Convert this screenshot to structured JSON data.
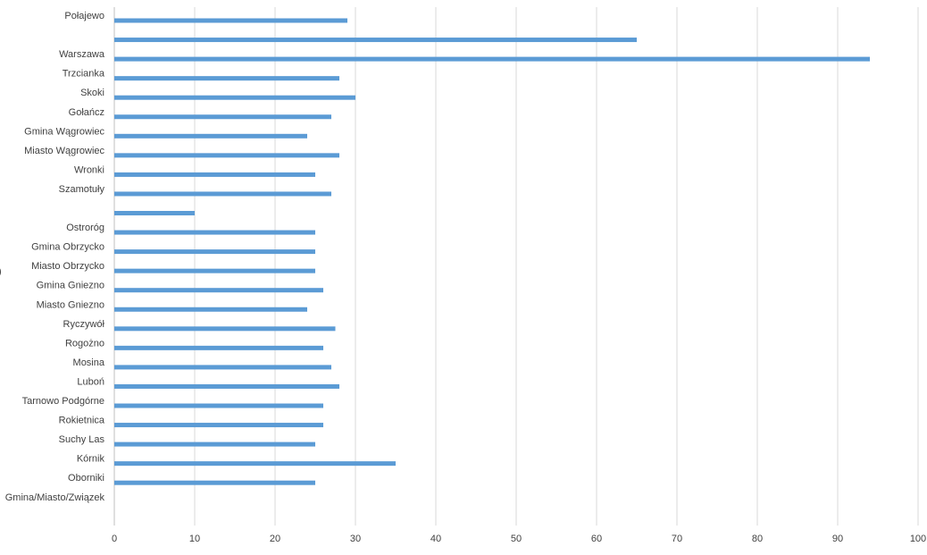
{
  "chart_data": {
    "type": "bar",
    "orientation": "horizontal",
    "categories": [
      "Połajewo",
      "",
      "Warszawa",
      "Trzcianka",
      "Skoki",
      "Gołańcz",
      "Gmina Wągrowiec",
      "Miasto Wągrowiec",
      "Wronki",
      "Szamotuły",
      "",
      "Ostroróg",
      "Gmina Obrzycko",
      "Miasto Obrzycko",
      "Gmina Gniezno",
      "Miasto Gniezno",
      "Ryczywół",
      "Rogożno",
      "Mosina",
      "Luboń",
      "Tarnowo Podgórne",
      "Rokietnica",
      "Suchy Las",
      "Kórnik",
      "Oborniki",
      "Gmina/Miasto/Związek"
    ],
    "values": [
      29,
      65,
      94,
      28,
      30,
      27,
      24,
      28,
      25,
      27,
      10,
      25,
      25,
      25,
      26,
      24,
      27.5,
      26,
      27,
      28,
      26,
      26,
      25,
      35,
      25,
      null
    ],
    "x_ticks": [
      "0",
      "10",
      "20",
      "30",
      "40",
      "50",
      "60",
      "70",
      "80",
      "90",
      "100"
    ],
    "xlim": [
      0,
      100
    ],
    "grid": true,
    "bar_color": "#5b9bd5",
    "title": "",
    "xlabel": "",
    "ylabel": ""
  }
}
